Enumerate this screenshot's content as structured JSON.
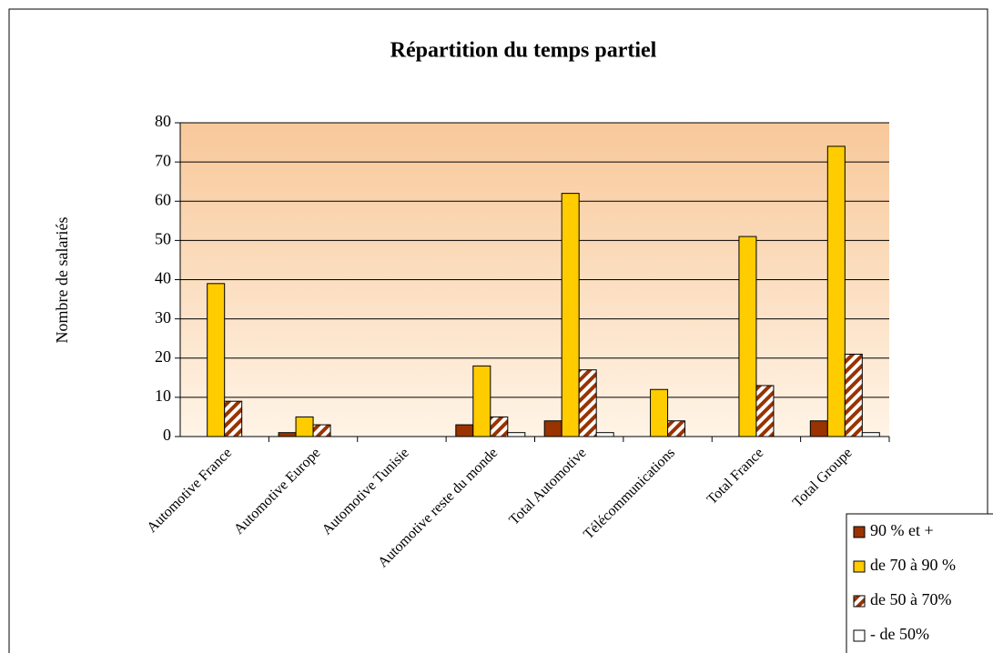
{
  "chart_data": {
    "type": "bar",
    "title": "Répartition du temps partiel",
    "y_label": "Nombre de salariés",
    "categories": [
      "Automotive France",
      "Automotive Europe",
      "Automotive Tunisie",
      "Automotive reste du monde",
      "Total Automotive",
      "Télécommunications",
      "Total France",
      "Total Groupe"
    ],
    "series": [
      {
        "name": "90 % et +",
        "color": "#993300",
        "values": [
          0,
          1,
          0,
          3,
          4,
          0,
          0,
          4
        ]
      },
      {
        "name": "de 70 à 90 %",
        "color": "#ffcc00",
        "values": [
          39,
          5,
          0,
          18,
          62,
          12,
          51,
          74
        ]
      },
      {
        "name": "de 50 à 70%",
        "color": "#993300",
        "pattern": "hatch",
        "values": [
          9,
          3,
          0,
          5,
          17,
          4,
          13,
          21
        ]
      },
      {
        "name": "- de 50%",
        "color": "#ffffff",
        "values": [
          0,
          0,
          0,
          1,
          1,
          0,
          0,
          1
        ]
      }
    ],
    "ylim": [
      0,
      80
    ],
    "yticks": [
      0,
      10,
      20,
      30,
      40,
      50,
      60,
      70,
      80
    ],
    "grid": true,
    "legend": "bottom-right"
  }
}
